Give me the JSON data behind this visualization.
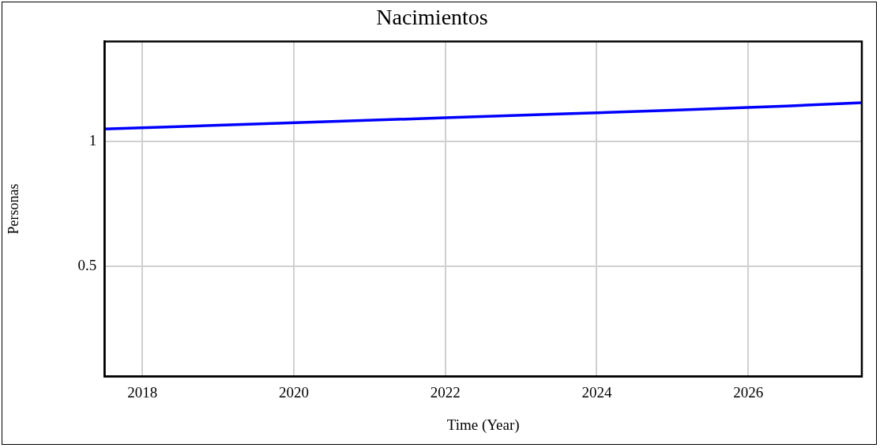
{
  "chart_data": {
    "type": "line",
    "title": "Nacimientos",
    "xlabel": "Time (Year)",
    "ylabel": "Personas",
    "x": [
      2017.5,
      2019,
      2020.5,
      2022,
      2023.5,
      2025,
      2026.5,
      2027.5
    ],
    "series": [
      {
        "color": "#0000ff",
        "values": [
          1.05,
          1.065,
          1.08,
          1.095,
          1.11,
          1.125,
          1.142,
          1.155
        ]
      }
    ],
    "xlim": [
      2017.5,
      2027.5
    ],
    "xticks": [
      2018,
      2020,
      2022,
      2024,
      2026
    ],
    "ylim": [
      0.06,
      1.4
    ],
    "yticks": [
      0.5,
      1
    ],
    "grid": true,
    "legend": false,
    "marker": "none",
    "line_style": "solid"
  }
}
